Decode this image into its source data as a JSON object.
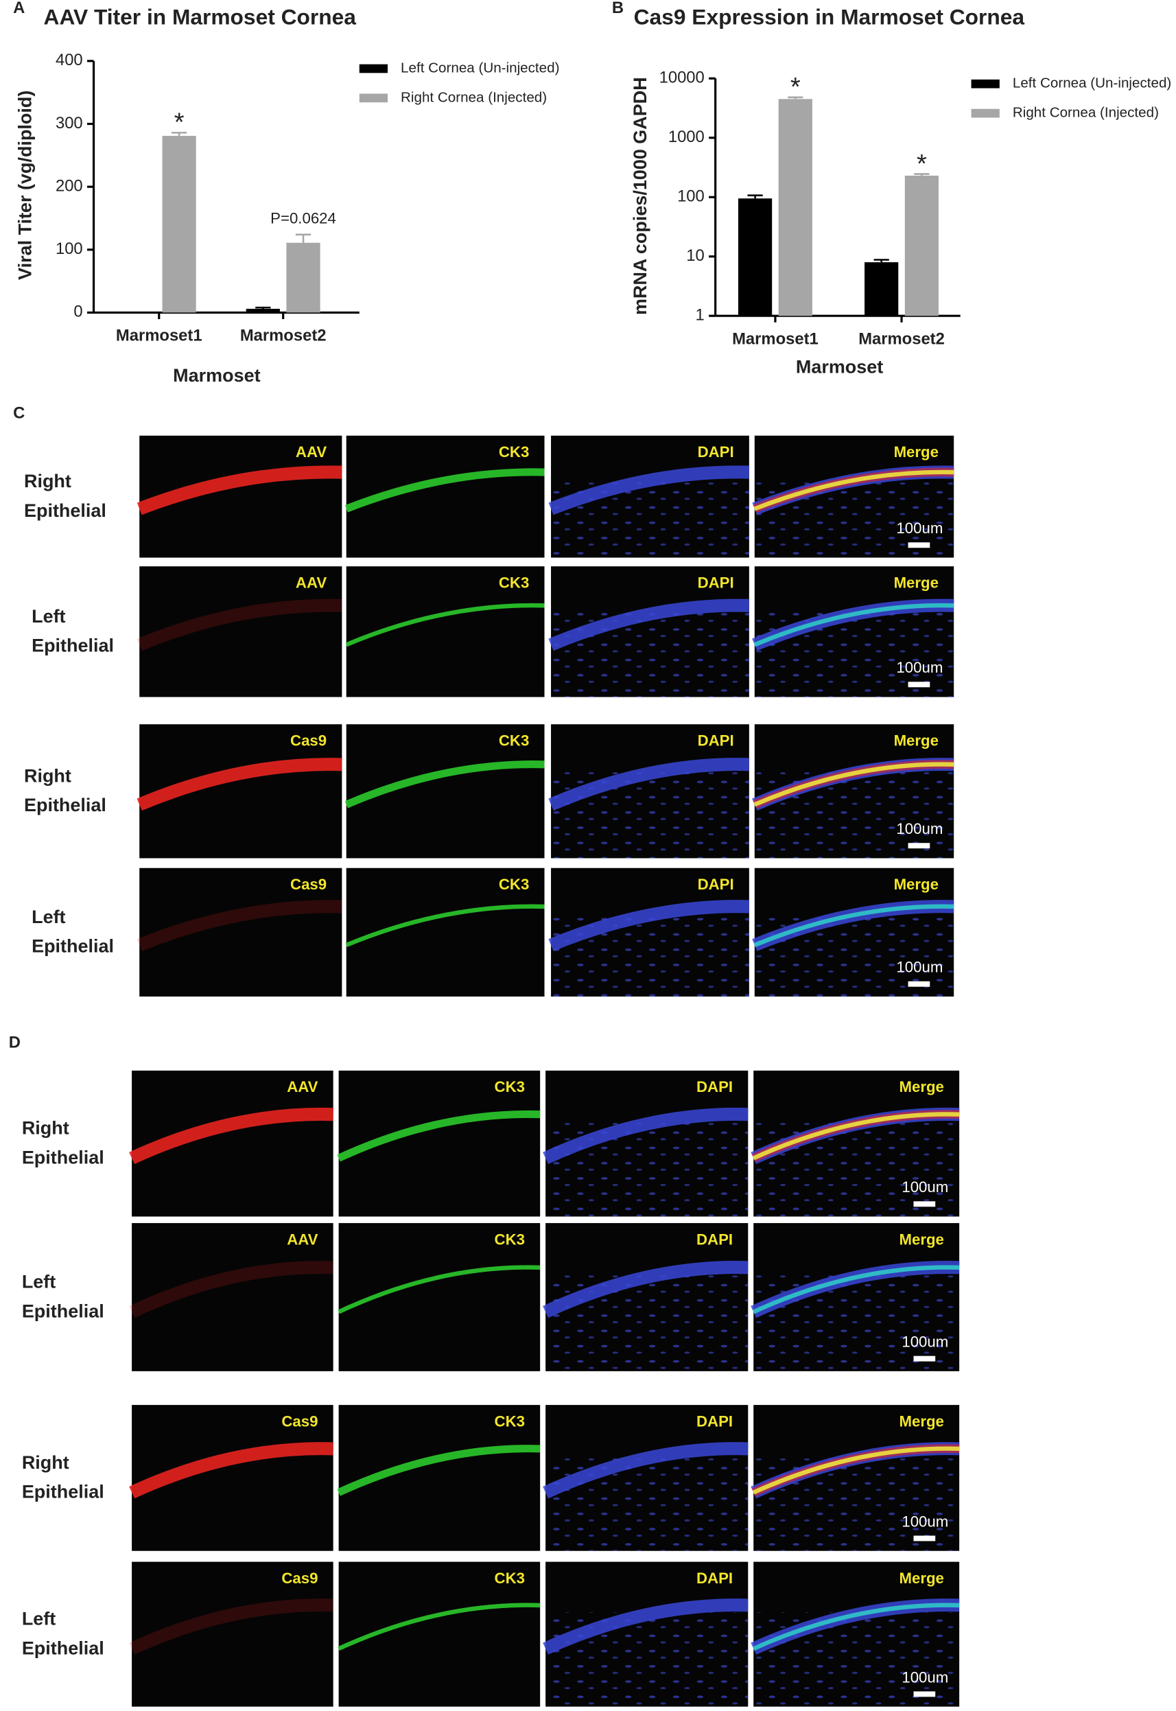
{
  "chart_data": [
    {
      "type": "bar",
      "panel": "A",
      "title": "AAV Titer in Marmoset Cornea",
      "y_label": "Viral Titer (vg/diploid)",
      "x_label": "Marmoset",
      "categories": [
        "Marmoset1",
        "Marmoset2"
      ],
      "series": [
        {
          "name": "Left Cornea (Un-injected)",
          "color": "#000000",
          "values": [
            0,
            6
          ],
          "errors": [
            0,
            2
          ],
          "annotations": [
            null,
            null
          ]
        },
        {
          "name": "Right Cornea (Injected)",
          "color": "#a6a6a6",
          "values": [
            281,
            111
          ],
          "errors": [
            5,
            13
          ],
          "annotations": [
            "*",
            "P=0.0624"
          ]
        }
      ],
      "ylim": [
        0,
        400
      ],
      "yticks": [
        0,
        100,
        200,
        300,
        400
      ],
      "log_scale": false,
      "grid": false,
      "legend": "outside-right"
    },
    {
      "type": "bar",
      "panel": "B",
      "title": "Cas9 Expression in Marmoset Cornea",
      "y_label": "mRNA copies/1000 GAPDH",
      "x_label": "Marmoset",
      "categories": [
        "Marmoset1",
        "Marmoset2"
      ],
      "series": [
        {
          "name": "Left Cornea (Un-injected)",
          "color": "#000000",
          "values": [
            95,
            8
          ],
          "errors": [
            12,
            0.8
          ],
          "annotations": [
            null,
            null
          ]
        },
        {
          "name": "Right Cornea (Injected)",
          "color": "#a6a6a6",
          "values": [
            4500,
            230
          ],
          "errors": [
            300,
            15
          ],
          "annotations": [
            "*",
            "*"
          ]
        }
      ],
      "ylim": [
        1,
        10000
      ],
      "yticks": [
        1,
        10,
        100,
        1000,
        10000
      ],
      "log_scale": true,
      "grid": false,
      "legend": "outside-right"
    }
  ],
  "figure_panels": [
    {
      "letter": "C",
      "rows": [
        {
          "label": [
            "Right",
            "Epithelial"
          ],
          "tiles": [
            "AAV",
            "CK3",
            "DAPI",
            "Merge"
          ],
          "scale_bar": "100um"
        },
        {
          "label": [
            "Left",
            "Epithelial"
          ],
          "tiles": [
            "AAV",
            "CK3",
            "DAPI",
            "Merge"
          ],
          "scale_bar": "100um"
        },
        {
          "label": [
            "Right",
            "Epithelial"
          ],
          "tiles": [
            "Cas9",
            "CK3",
            "DAPI",
            "Merge"
          ],
          "scale_bar": "100um"
        },
        {
          "label": [
            "Left",
            "Epithelial"
          ],
          "tiles": [
            "Cas9",
            "CK3",
            "DAPI",
            "Merge"
          ],
          "scale_bar": "100um"
        }
      ]
    },
    {
      "letter": "D",
      "rows": [
        {
          "label": [
            "Right",
            "Epithelial"
          ],
          "tiles": [
            "AAV",
            "CK3",
            "DAPI",
            "Merge"
          ],
          "scale_bar": "100um"
        },
        {
          "label": [
            "Left",
            "Epithelial"
          ],
          "tiles": [
            "AAV",
            "CK3",
            "DAPI",
            "Merge"
          ],
          "scale_bar": "100um"
        },
        {
          "label": [
            "Right",
            "Epithelial"
          ],
          "tiles": [
            "Cas9",
            "CK3",
            "DAPI",
            "Merge"
          ],
          "scale_bar": "100um"
        },
        {
          "label": [
            "Left",
            "Epithelial"
          ],
          "tiles": [
            "Cas9",
            "CK3",
            "DAPI",
            "Merge"
          ],
          "scale_bar": "100um"
        }
      ]
    }
  ]
}
